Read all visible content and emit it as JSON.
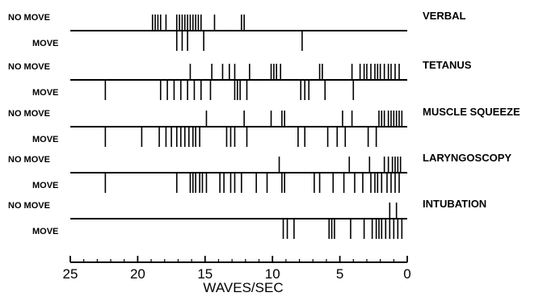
{
  "chart_data": {
    "type": "event-raster",
    "xlabel": "WAVES/SEC",
    "xlim": [
      25,
      0
    ],
    "x_ticks": [
      25,
      20,
      15,
      10,
      5,
      0
    ],
    "labels": {
      "no_move": "NO MOVE",
      "move": "MOVE"
    },
    "stimuli": [
      {
        "name": "VERBAL",
        "no_move": [
          18.9,
          18.7,
          18.5,
          18.3,
          17.9,
          17.1,
          16.9,
          16.7,
          16.5,
          16.3,
          16.1,
          15.9,
          15.7,
          15.5,
          15.3,
          14.3,
          12.3,
          12.1
        ],
        "move": [
          17.1,
          16.7,
          16.3,
          15.1,
          7.8
        ]
      },
      {
        "name": "TETANUS",
        "no_move": [
          16.1,
          14.5,
          13.7,
          13.2,
          12.8,
          11.7,
          10.1,
          9.9,
          9.7,
          9.4,
          6.5,
          6.3,
          4.1,
          3.5,
          3.2,
          3.0,
          2.7,
          2.4,
          2.2,
          2.0,
          1.7,
          1.4,
          1.2,
          0.9,
          0.6
        ],
        "move": [
          22.4,
          18.3,
          17.8,
          17.3,
          16.8,
          16.3,
          15.8,
          15.3,
          14.6,
          12.8,
          12.6,
          12.4,
          11.9,
          7.9,
          7.6,
          7.3,
          6.1,
          4.0
        ]
      },
      {
        "name": "MUSCLE SQUEEZE",
        "no_move": [
          14.9,
          12.1,
          10.1,
          9.3,
          9.1,
          4.8,
          4.1,
          2.1,
          1.9,
          1.7,
          1.4,
          1.2,
          1.0,
          0.8,
          0.6,
          0.4
        ],
        "move": [
          22.4,
          19.7,
          18.4,
          17.9,
          17.5,
          17.1,
          16.8,
          16.5,
          16.2,
          15.9,
          15.7,
          15.4,
          13.4,
          13.1,
          12.8,
          11.9,
          8.1,
          7.6,
          5.9,
          5.2,
          4.6,
          2.9,
          2.3
        ]
      },
      {
        "name": "LARYNGOSCOPY",
        "no_move": [
          9.5,
          4.3,
          2.8,
          1.7,
          1.4,
          1.1,
          0.9,
          0.7,
          0.5
        ],
        "move": [
          22.4,
          17.1,
          16.1,
          15.9,
          15.7,
          15.4,
          15.2,
          14.9,
          13.9,
          13.6,
          13.1,
          12.8,
          12.3,
          11.2,
          10.4,
          9.3,
          9.1,
          6.9,
          6.5,
          5.5,
          4.7,
          3.9,
          3.3,
          2.7,
          2.4,
          2.2,
          1.9,
          1.5,
          1.2,
          0.9,
          0.6
        ]
      },
      {
        "name": "INTUBATION",
        "no_move": [
          1.3,
          0.8
        ],
        "move": [
          9.2,
          8.9,
          8.4,
          5.8,
          5.6,
          5.4,
          4.2,
          3.2,
          2.6,
          2.3,
          2.1,
          1.9,
          1.6,
          1.3,
          1.0,
          0.7,
          0.4
        ]
      }
    ]
  }
}
